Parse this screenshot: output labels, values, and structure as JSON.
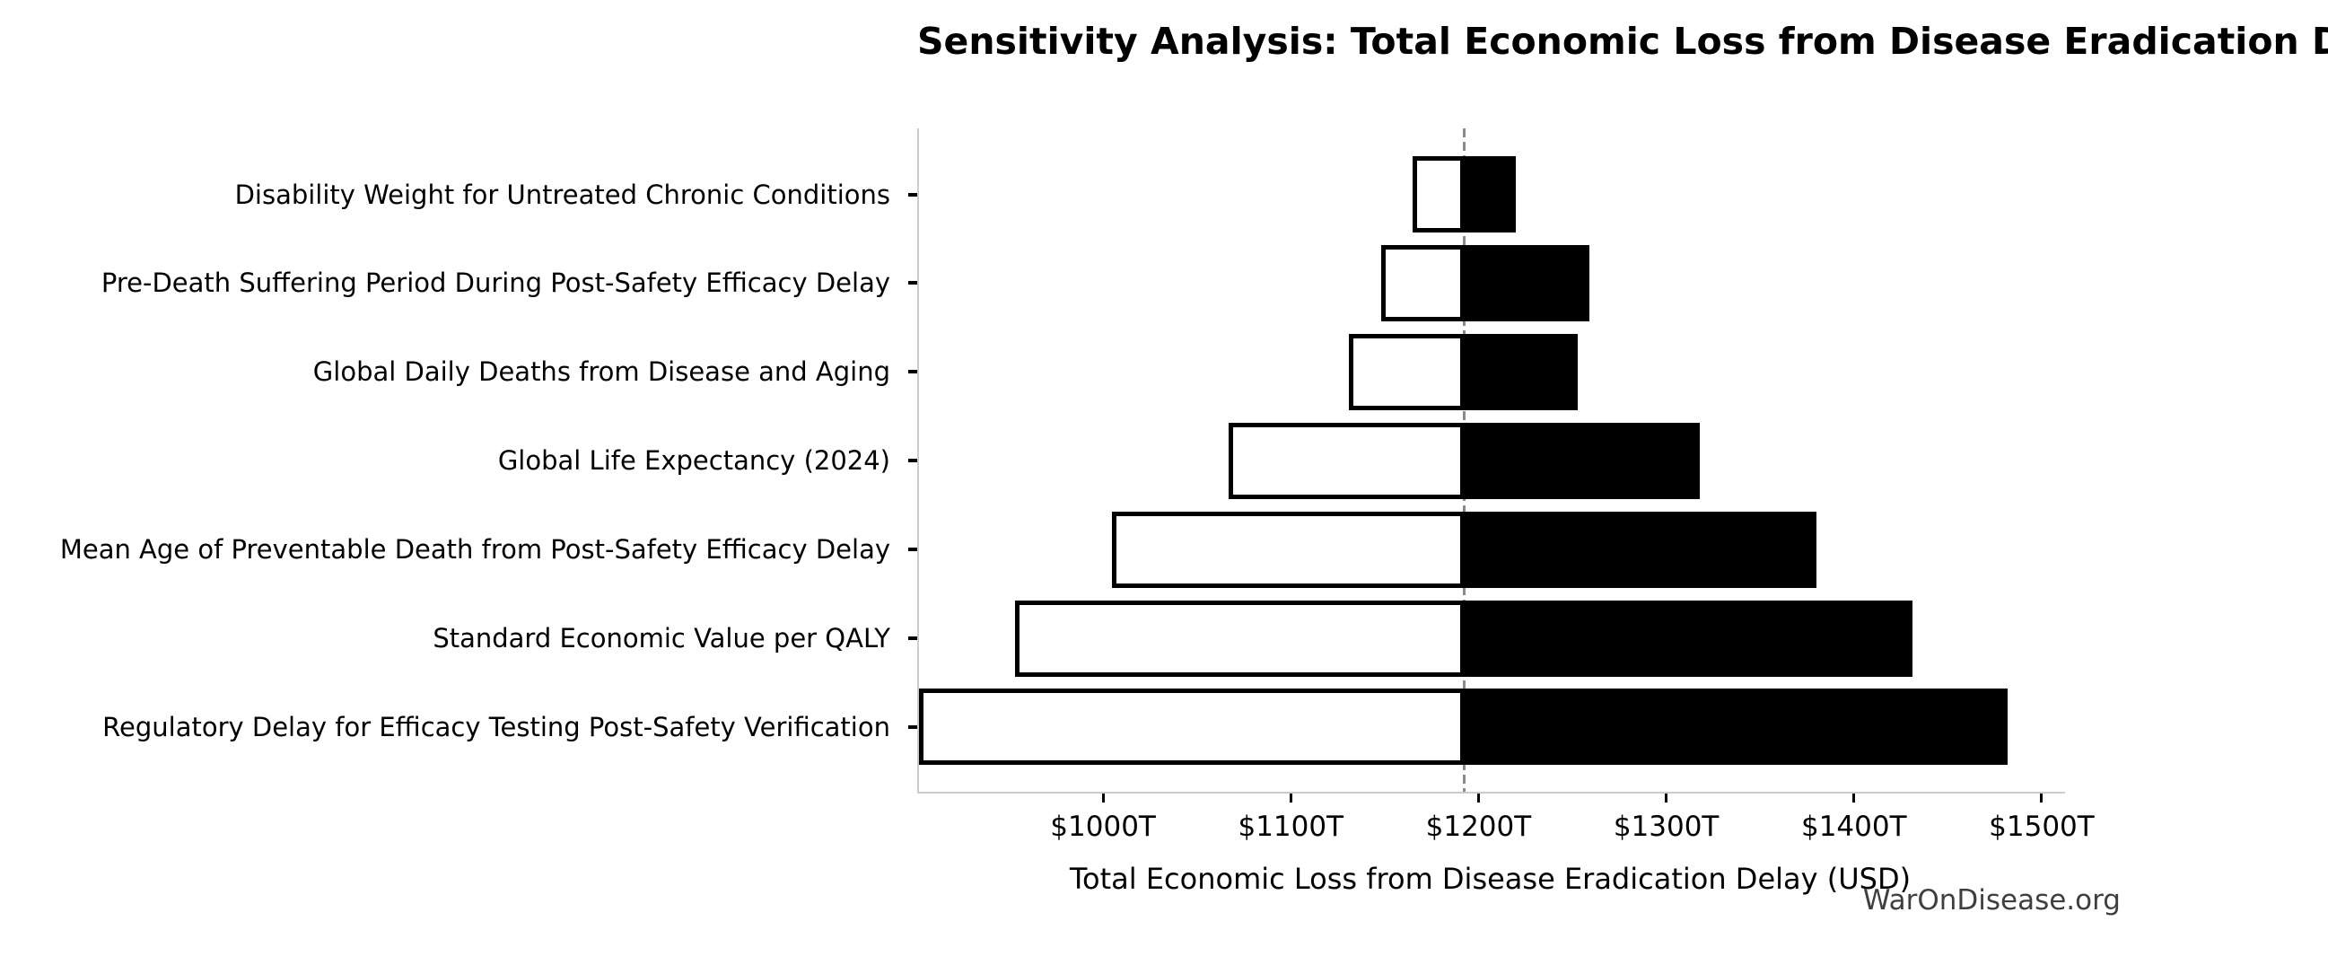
{
  "page": {
    "background_color": "#ffffff"
  },
  "chart_data": {
    "type": "bar",
    "variant": "tornado-sensitivity",
    "orientation": "horizontal",
    "title": "Sensitivity Analysis: Total Economic Loss from Disease Eradication Delay",
    "xlabel": "Total Economic Loss from Disease Eradication Delay (USD)",
    "ylabel": "",
    "unit": "trillion USD",
    "xlim": [
      901,
      1511.5
    ],
    "baseline_value": 1191.5,
    "grid": false,
    "legend": "none",
    "x_ticks": [
      {
        "value": 1000,
        "label": "$1000T"
      },
      {
        "value": 1100,
        "label": "$1100T"
      },
      {
        "value": 1200,
        "label": "$1200T"
      },
      {
        "value": 1300,
        "label": "$1300T"
      },
      {
        "value": 1400,
        "label": "$1400T"
      },
      {
        "value": 1500,
        "label": "$1500T"
      }
    ],
    "categories": [
      "Disability Weight for Untreated Chronic Conditions",
      "Pre-Death Suffering Period During Post-Safety Efficacy Delay",
      "Global Daily Deaths from Disease and Aging",
      "Global Life Expectancy (2024)",
      "Mean Age of Preventable Death from Post-Safety Efficacy Delay",
      "Standard Economic Value per QALY",
      "Regulatory Delay for Efficacy Testing Post-Safety Verification"
    ],
    "series": [
      {
        "name": "low_case",
        "fill": "#ffffff",
        "values": [
          1164,
          1147,
          1130,
          1066,
          1004,
          952,
          901
        ]
      },
      {
        "name": "high_case",
        "fill": "#000000",
        "values": [
          1219,
          1258,
          1252,
          1317,
          1379,
          1430,
          1481
        ]
      }
    ],
    "colors": {
      "bar_edge": "#000000",
      "baseline_line": "#8a8a8a",
      "spine": "#cccccc",
      "tick_mark": "#000000",
      "text": "#000000",
      "watermark": "#3f3f3f"
    },
    "watermark": "WarOnDisease.org"
  }
}
